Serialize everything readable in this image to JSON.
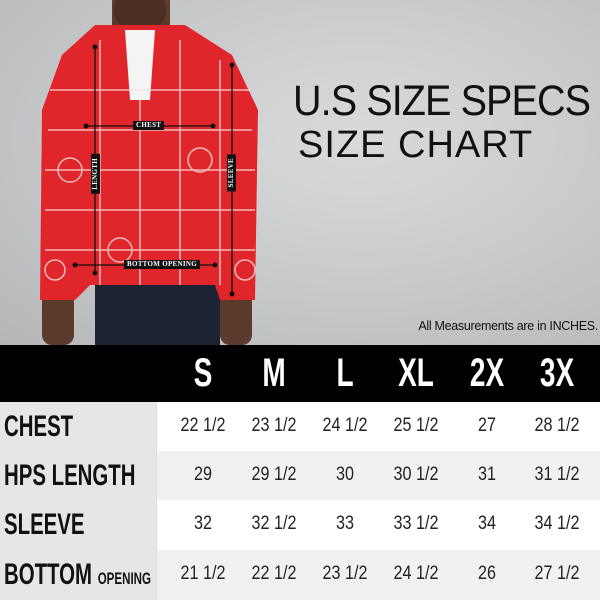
{
  "title": "U.S SIZE SPECS",
  "subtitle": "SIZE CHART",
  "note": "All Measurements are in INCHES.",
  "diagram_labels": {
    "chest": "CHEST",
    "length": "LENGTH",
    "sleeve": "SLEEVE",
    "bottom": "BOTTOM OPENING"
  },
  "colors": {
    "jacket": "#e0262b",
    "header_bg": "#000000",
    "label_bg": "#e6e6e6"
  },
  "sizes": [
    "S",
    "M",
    "L",
    "XL",
    "2X",
    "3X"
  ],
  "rows": [
    {
      "label": "CHEST",
      "sublabel": "",
      "values": [
        "22 1/2",
        "23 1/2",
        "24 1/2",
        "25 1/2",
        "27",
        "28 1/2"
      ]
    },
    {
      "label": "HPS LENGTH",
      "sublabel": "",
      "values": [
        "29",
        "29 1/2",
        "30",
        "30 1/2",
        "31",
        "31 1/2"
      ]
    },
    {
      "label": "SLEEVE",
      "sublabel": "",
      "values": [
        "32",
        "32 1/2",
        "33",
        "33 1/2",
        "34",
        "34 1/2"
      ]
    },
    {
      "label": "BOTTOM",
      "sublabel": "OPENING",
      "values": [
        "21 1/2",
        "22 1/2",
        "23 1/2",
        "24 1/2",
        "26",
        "27 1/2"
      ]
    }
  ]
}
